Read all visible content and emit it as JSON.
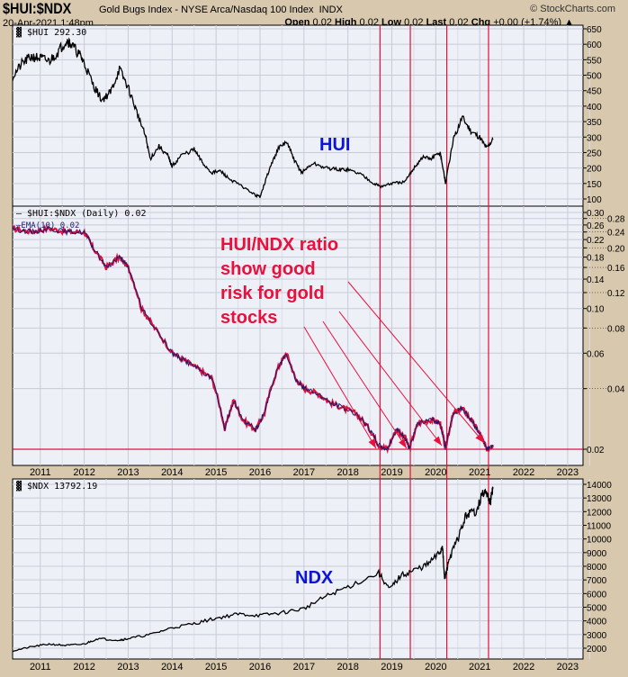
{
  "header": {
    "symbol": "$HUI:$NDX",
    "description": "Gold Bugs Index - NYSE Arca/Nasdaq 100 Index",
    "exchange": "INDX",
    "brand": "© StockCharts.com",
    "date": "20-Apr-2021 1:48pm",
    "open_label": "Open",
    "open": "0.02",
    "high_label": "High",
    "high": "0.02",
    "low_label": "Low",
    "low": "0.02",
    "last_label": "Last",
    "last": "0.02",
    "chg_label": "Chg",
    "chg": "+0.00 (+1.74%)"
  },
  "colors": {
    "background": "#d7c8ae",
    "panel": "#eef0f8",
    "grid": "#c8cad6",
    "price": "#000000",
    "ratio": "#e0103a",
    "ema": "#1a1a6e",
    "annotation_red": "#e8103c",
    "annotation_blue": "#0b14d8"
  },
  "chart_data": [
    {
      "type": "line",
      "panel": "top",
      "legend": "$HUI 292.30",
      "x_range": [
        2010.37,
        2023.35
      ],
      "yticks": [
        100,
        150,
        200,
        250,
        300,
        350,
        400,
        450,
        500,
        550,
        600,
        650
      ],
      "ylim": [
        100,
        650
      ],
      "x": [
        2010.37,
        2010.6,
        2010.8,
        2011.0,
        2011.2,
        2011.4,
        2011.6,
        2011.7,
        2011.9,
        2012.0,
        2012.2,
        2012.4,
        2012.6,
        2012.8,
        2013.0,
        2013.2,
        2013.4,
        2013.5,
        2013.7,
        2013.9,
        2014.0,
        2014.2,
        2014.5,
        2014.7,
        2014.9,
        2015.1,
        2015.3,
        2015.6,
        2015.9,
        2016.0,
        2016.2,
        2016.4,
        2016.6,
        2016.8,
        2016.95,
        2017.2,
        2017.5,
        2017.8,
        2018.0,
        2018.3,
        2018.6,
        2018.75,
        2019.0,
        2019.3,
        2019.5,
        2019.7,
        2019.9,
        2020.1,
        2020.2,
        2020.22,
        2020.4,
        2020.6,
        2020.8,
        2021.0,
        2021.15,
        2021.3
      ],
      "values": [
        495,
        540,
        560,
        555,
        545,
        575,
        615,
        600,
        565,
        540,
        470,
        420,
        445,
        520,
        460,
        380,
        300,
        230,
        270,
        240,
        205,
        240,
        260,
        215,
        185,
        190,
        165,
        140,
        112,
        108,
        190,
        260,
        285,
        220,
        185,
        215,
        200,
        195,
        195,
        180,
        150,
        140,
        150,
        155,
        200,
        235,
        230,
        250,
        170,
        150,
        290,
        365,
        320,
        300,
        265,
        292
      ]
    },
    {
      "type": "line",
      "panel": "middle",
      "scale": "log",
      "legend": [
        "$HUI:$NDX (Daily) 0.02",
        "EMA(10) 0.02"
      ],
      "yticks": [
        0.02,
        0.04,
        0.06,
        0.08,
        0.1,
        0.12,
        0.14,
        0.16,
        0.18,
        0.2,
        0.22,
        0.24,
        0.26,
        0.28,
        0.3
      ],
      "ylim": [
        0.0185,
        0.31
      ],
      "x": [
        2010.37,
        2010.8,
        2011.2,
        2011.6,
        2012.0,
        2012.2,
        2012.5,
        2012.8,
        2013.0,
        2013.3,
        2013.6,
        2014.0,
        2014.3,
        2014.6,
        2014.9,
        2015.2,
        2015.4,
        2015.6,
        2015.9,
        2016.1,
        2016.4,
        2016.6,
        2016.8,
        2017.0,
        2017.3,
        2017.6,
        2017.9,
        2018.2,
        2018.5,
        2018.7,
        2018.9,
        2019.1,
        2019.3,
        2019.4,
        2019.6,
        2019.9,
        2020.1,
        2020.22,
        2020.4,
        2020.6,
        2020.8,
        2021.0,
        2021.15,
        2021.3
      ],
      "values": [
        0.25,
        0.24,
        0.25,
        0.24,
        0.24,
        0.2,
        0.16,
        0.18,
        0.16,
        0.1,
        0.08,
        0.06,
        0.055,
        0.05,
        0.045,
        0.025,
        0.035,
        0.028,
        0.025,
        0.03,
        0.05,
        0.06,
        0.045,
        0.04,
        0.038,
        0.034,
        0.032,
        0.03,
        0.025,
        0.021,
        0.02,
        0.025,
        0.023,
        0.02,
        0.027,
        0.028,
        0.027,
        0.02,
        0.03,
        0.032,
        0.028,
        0.024,
        0.02,
        0.021
      ],
      "hline": 0.02
    },
    {
      "type": "line",
      "panel": "bottom",
      "legend": "$NDX 13792.19",
      "yticks": [
        2000,
        3000,
        4000,
        5000,
        6000,
        7000,
        8000,
        9000,
        10000,
        11000,
        12000,
        13000,
        14000
      ],
      "ylim": [
        1000,
        14400
      ],
      "x": [
        2010.37,
        2010.8,
        2011.2,
        2011.6,
        2012.0,
        2012.3,
        2012.8,
        2013.0,
        2013.5,
        2014.0,
        2014.5,
        2015.0,
        2015.5,
        2016.0,
        2016.5,
        2017.0,
        2017.5,
        2018.0,
        2018.7,
        2018.95,
        2019.2,
        2019.5,
        2019.8,
        2020.1,
        2020.15,
        2020.2,
        2020.3,
        2020.5,
        2020.7,
        2020.9,
        2021.1,
        2021.25,
        2021.3
      ],
      "values": [
        1800,
        2100,
        2300,
        2200,
        2300,
        2700,
        2600,
        2700,
        3000,
        3500,
        3800,
        4200,
        4500,
        4400,
        4600,
        4900,
        5800,
        6500,
        7500,
        6300,
        7300,
        7700,
        8100,
        9000,
        9600,
        7000,
        8500,
        10000,
        11800,
        12000,
        13500,
        12800,
        13792
      ]
    }
  ],
  "x_axis": {
    "years": [
      2011,
      2012,
      2013,
      2014,
      2015,
      2016,
      2017,
      2018,
      2019,
      2020,
      2021,
      2022,
      2023
    ]
  },
  "markers": {
    "vertical_lines": [
      2018.73,
      2019.42,
      2020.25,
      2021.2
    ]
  },
  "annotations": {
    "hui": "HUI",
    "ndx": "NDX",
    "ratio_lines": [
      "HUI/NDX ratio",
      "show good",
      "risk for gold",
      "stocks"
    ]
  }
}
